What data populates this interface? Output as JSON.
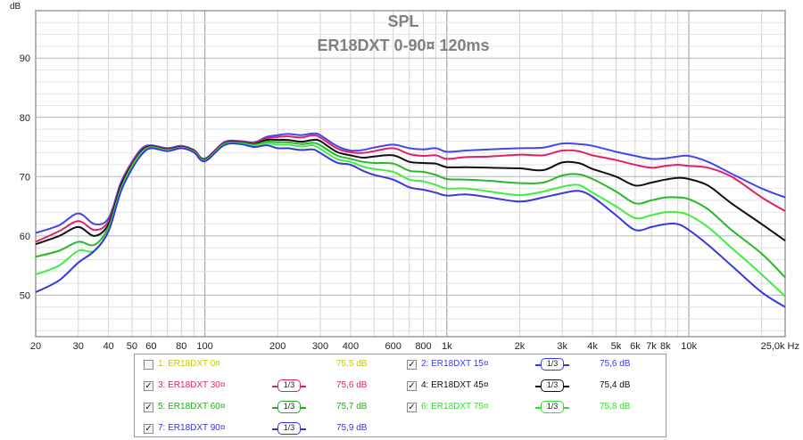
{
  "chart_data": {
    "type": "line",
    "title": "SPL",
    "subtitle": "ER18DXT 0-90¤ 120ms",
    "ylabel": "dB",
    "xunit": "Hz",
    "xscale": "log",
    "xlim": [
      20,
      25000
    ],
    "ylim": [
      43,
      98
    ],
    "grid": true,
    "y_ticks": [
      50,
      60,
      70,
      80,
      90
    ],
    "x_ticks": [
      {
        "v": 20,
        "label": "20"
      },
      {
        "v": 30,
        "label": "30"
      },
      {
        "v": 40,
        "label": "40"
      },
      {
        "v": 50,
        "label": "50"
      },
      {
        "v": 60,
        "label": "60"
      },
      {
        "v": 80,
        "label": "80"
      },
      {
        "v": 100,
        "label": "100"
      },
      {
        "v": 200,
        "label": "200"
      },
      {
        "v": 300,
        "label": "300"
      },
      {
        "v": 400,
        "label": "400"
      },
      {
        "v": 600,
        "label": "600"
      },
      {
        "v": 800,
        "label": "800"
      },
      {
        "v": 1000,
        "label": "1k"
      },
      {
        "v": 2000,
        "label": "2k"
      },
      {
        "v": 3000,
        "label": "3k"
      },
      {
        "v": 4000,
        "label": "4k"
      },
      {
        "v": 5000,
        "label": "5k"
      },
      {
        "v": 6000,
        "label": "6k"
      },
      {
        "v": 7000,
        "label": "7k"
      },
      {
        "v": 8000,
        "label": "8k"
      },
      {
        "v": 10000,
        "label": "10k"
      },
      {
        "v": 25000,
        "label": "25,0k Hz"
      }
    ],
    "x": [
      20,
      25,
      30,
      35,
      40,
      45,
      50,
      55,
      60,
      70,
      80,
      90,
      100,
      120,
      140,
      160,
      180,
      200,
      220,
      250,
      280,
      300,
      350,
      400,
      450,
      500,
      600,
      700,
      800,
      900,
      1000,
      1200,
      1500,
      2000,
      2500,
      3000,
      3500,
      4000,
      5000,
      6000,
      7000,
      8000,
      9000,
      10000,
      12000,
      15000,
      20000,
      25000
    ],
    "series": [
      {
        "name": "ER18DXT 15¤",
        "color": "#4545ee",
        "values": [
          60.5,
          61.8,
          63.8,
          62.0,
          63.0,
          69.0,
          72.5,
          74.8,
          75.3,
          74.8,
          75.2,
          74.5,
          73.0,
          75.8,
          76.0,
          75.8,
          76.7,
          77.0,
          77.2,
          77.0,
          77.3,
          77.0,
          75.2,
          74.4,
          74.5,
          74.9,
          75.4,
          74.8,
          74.6,
          74.8,
          74.2,
          74.4,
          74.6,
          74.8,
          74.9,
          75.6,
          75.5,
          75.2,
          74.2,
          73.5,
          73.0,
          73.1,
          73.4,
          73.5,
          72.5,
          70.5,
          68.0,
          66.5
        ]
      },
      {
        "name": "ER18DXT 30¤",
        "color": "#e0206a",
        "values": [
          59.0,
          60.8,
          62.5,
          61.0,
          62.5,
          68.8,
          72.3,
          74.6,
          75.2,
          74.7,
          75.1,
          74.5,
          73.0,
          75.7,
          75.9,
          75.7,
          76.5,
          76.7,
          76.8,
          76.6,
          77.0,
          76.6,
          74.8,
          74.1,
          74.0,
          74.3,
          74.8,
          73.8,
          73.5,
          73.6,
          73.0,
          73.3,
          73.4,
          73.7,
          73.6,
          74.4,
          74.3,
          73.6,
          72.8,
          72.0,
          71.5,
          71.8,
          72.0,
          71.8,
          71.5,
          70.0,
          66.5,
          64.2
        ]
      },
      {
        "name": "ER18DXT 45¤",
        "color": "#101010",
        "values": [
          58.6,
          60.0,
          61.5,
          60.0,
          62.0,
          68.5,
          72.0,
          74.4,
          75.1,
          74.6,
          75.0,
          74.4,
          72.9,
          75.6,
          75.8,
          75.5,
          76.2,
          76.2,
          76.2,
          75.9,
          76.2,
          76.0,
          74.2,
          73.6,
          73.2,
          73.4,
          73.6,
          72.5,
          72.3,
          72.2,
          71.6,
          71.6,
          71.5,
          71.4,
          71.1,
          72.4,
          72.3,
          71.3,
          70.0,
          68.5,
          69.0,
          69.5,
          69.8,
          69.6,
          68.5,
          65.5,
          62.0,
          59.2
        ]
      },
      {
        "name": "ER18DXT 60¤",
        "color": "#28b828",
        "values": [
          56.5,
          57.5,
          59.0,
          58.5,
          61.5,
          68.0,
          71.8,
          74.2,
          75.0,
          74.5,
          74.9,
          74.3,
          72.8,
          75.5,
          75.7,
          75.4,
          75.9,
          75.8,
          75.8,
          75.5,
          75.7,
          75.3,
          73.6,
          73.0,
          72.5,
          72.3,
          72.2,
          71.0,
          70.8,
          70.3,
          69.6,
          69.5,
          69.3,
          68.9,
          69.0,
          70.2,
          70.4,
          69.6,
          67.5,
          65.5,
          66.0,
          66.5,
          66.5,
          66.2,
          64.5,
          61.0,
          57.0,
          53.0
        ]
      },
      {
        "name": "ER18DXT 75¤",
        "color": "#40ee40",
        "values": [
          53.5,
          55.0,
          57.5,
          57.5,
          61.0,
          67.8,
          71.6,
          74.0,
          74.9,
          74.4,
          74.9,
          74.2,
          72.7,
          75.4,
          75.6,
          75.2,
          75.6,
          75.4,
          75.4,
          75.1,
          75.3,
          74.7,
          73.0,
          72.5,
          71.7,
          71.3,
          70.8,
          69.5,
          69.2,
          68.6,
          68.0,
          68.0,
          67.5,
          66.9,
          67.5,
          68.3,
          68.6,
          67.3,
          65.0,
          63.0,
          63.5,
          64.0,
          64.0,
          63.5,
          61.5,
          58.0,
          53.5,
          49.8
        ]
      },
      {
        "name": "ER18DXT 90¤",
        "color": "#3838dd",
        "values": [
          50.5,
          52.5,
          55.5,
          57.5,
          60.8,
          67.5,
          71.3,
          73.8,
          74.8,
          74.3,
          74.8,
          74.1,
          72.6,
          75.3,
          75.5,
          75.0,
          75.3,
          74.8,
          74.8,
          74.5,
          74.6,
          74.0,
          72.4,
          72.0,
          71.0,
          70.3,
          69.5,
          68.2,
          67.8,
          67.3,
          66.8,
          67.0,
          66.5,
          65.8,
          66.5,
          67.2,
          67.6,
          66.6,
          63.5,
          61.0,
          61.5,
          62.0,
          62.0,
          61.0,
          58.5,
          55.0,
          50.5,
          48.0
        ]
      }
    ]
  },
  "legend": [
    {
      "num": "1:",
      "name": "ER18DXT 0¤",
      "checked": false,
      "show_smooth": false,
      "smooth": "",
      "value": "75,5 dB",
      "color": "#c8c800"
    },
    {
      "num": "2:",
      "name": "ER18DXT 15¤",
      "checked": true,
      "show_smooth": true,
      "smooth": "1/3",
      "value": "75,6 dB",
      "color": "#3a3ae0"
    },
    {
      "num": "3:",
      "name": "ER18DXT 30¤",
      "checked": true,
      "show_smooth": true,
      "smooth": "1/3",
      "value": "75,6 dB",
      "color": "#e0206a"
    },
    {
      "num": "4:",
      "name": "ER18DXT 45¤",
      "checked": true,
      "show_smooth": true,
      "smooth": "1/3",
      "value": "75,4 dB",
      "color": "#101010"
    },
    {
      "num": "5:",
      "name": "ER18DXT 60¤",
      "checked": true,
      "show_smooth": true,
      "smooth": "1/3",
      "value": "75,7 dB",
      "color": "#22aa22"
    },
    {
      "num": "6:",
      "name": "ER18DXT 75¤",
      "checked": true,
      "show_smooth": true,
      "smooth": "1/3",
      "value": "75,8 dB",
      "color": "#33dd33"
    },
    {
      "num": "7:",
      "name": "ER18DXT 90¤",
      "checked": true,
      "show_smooth": true,
      "smooth": "1/3",
      "value": "75,9 dB",
      "color": "#3535d8"
    }
  ]
}
